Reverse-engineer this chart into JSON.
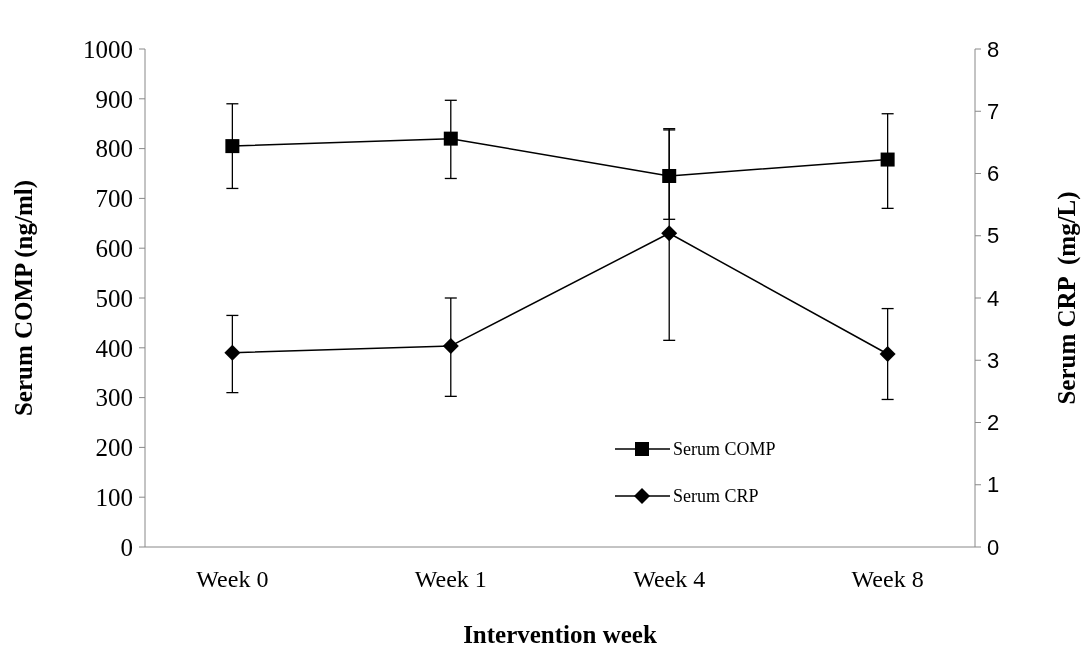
{
  "chart_data": {
    "type": "line",
    "xlabel": "Intervention week",
    "ylabel": "Serum COMP (ng/ml)",
    "y2label": "Serum CRP  (mg/L)",
    "categories": [
      "Week 0",
      "Week 1",
      "Week 4",
      "Week 8"
    ],
    "series": [
      {
        "name": "Serum COMP",
        "color": "#000000",
        "marker": "square",
        "values": [
          805,
          820,
          745,
          778
        ],
        "errors": [
          [
            720,
            890
          ],
          [
            740,
            897
          ],
          [
            658,
            840
          ],
          [
            680,
            870
          ]
        ]
      },
      {
        "name": "Serum CRP",
        "color": "#000000",
        "marker": "diamond",
        "axis": "y2",
        "values": [
          3.12,
          3.23,
          5.04,
          3.1
        ],
        "errors": [
          [
            2.48,
            3.72
          ],
          [
            2.42,
            4.0
          ],
          [
            3.32,
            6.7
          ],
          [
            2.37,
            3.83
          ]
        ]
      }
    ],
    "ylim": [
      0,
      1000
    ],
    "yticks": [
      0,
      100,
      200,
      300,
      400,
      500,
      600,
      700,
      800,
      900,
      1000
    ],
    "y2lim": [
      0,
      8
    ],
    "y2ticks": [
      0,
      1,
      2,
      3,
      4,
      5,
      6,
      7,
      8
    ],
    "legend": "bottom right",
    "grid": false
  }
}
